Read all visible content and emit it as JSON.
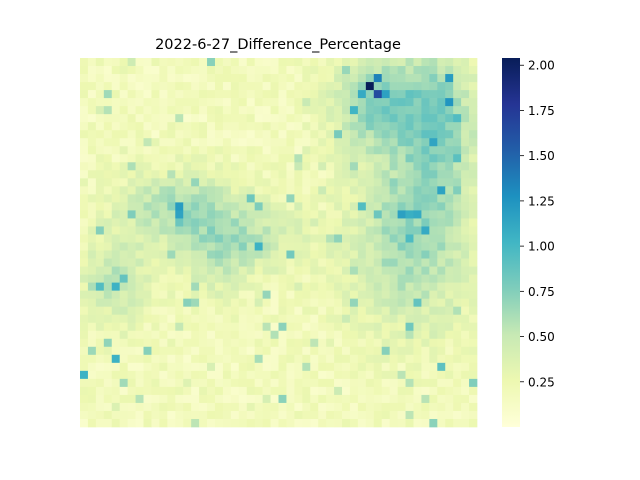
{
  "chart_data": {
    "type": "heatmap",
    "title": "2022-6-27_Difference_Percentage",
    "xlabel": "",
    "ylabel": "",
    "x_tick_labels": [],
    "y_tick_labels": [],
    "grid": false,
    "colormap": "YlGnBu",
    "colorbar": {
      "range": [
        0.0,
        2.04
      ],
      "ticks": [
        0.25,
        0.5,
        0.75,
        1.0,
        1.25,
        1.5,
        1.75,
        2.0
      ],
      "tick_labels": [
        "0.25",
        "0.50",
        "0.75",
        "1.00",
        "1.25",
        "1.50",
        "1.75",
        "2.00"
      ],
      "colors": [
        "#ffffd9",
        "#edf8b1",
        "#c7e9b4",
        "#7fcdbb",
        "#41b6c4",
        "#1d91c0",
        "#225ea8",
        "#253494",
        "#081d58"
      ]
    },
    "grid_size": {
      "rows": 46,
      "cols": 50
    },
    "description_of_values": "Per-cell difference percentage, mostly 0.05–0.4; elevated band (0.6–1.3) across lower-left diagonal ridge; high cluster (0.7–2.04) in upper right; max ~2.04 near top-center-right.",
    "hotspots": [
      {
        "row": 3,
        "col": 36,
        "value": 2.04
      },
      {
        "row": 4,
        "col": 37,
        "value": 1.65
      },
      {
        "row": 2,
        "col": 37,
        "value": 1.35
      },
      {
        "row": 4,
        "col": 35,
        "value": 1.1
      },
      {
        "row": 5,
        "col": 46,
        "value": 1.25
      },
      {
        "row": 2,
        "col": 46,
        "value": 1.2
      },
      {
        "row": 18,
        "col": 12,
        "value": 1.2
      },
      {
        "row": 19,
        "col": 12,
        "value": 1.15
      },
      {
        "row": 23,
        "col": 22,
        "value": 1.05
      },
      {
        "row": 21,
        "col": 43,
        "value": 1.1
      },
      {
        "row": 28,
        "col": 4,
        "value": 1.05
      },
      {
        "row": 37,
        "col": 4,
        "value": 1.05
      },
      {
        "row": 39,
        "col": 0,
        "value": 1.05
      },
      {
        "row": 38,
        "col": 45,
        "value": 0.9
      }
    ]
  }
}
